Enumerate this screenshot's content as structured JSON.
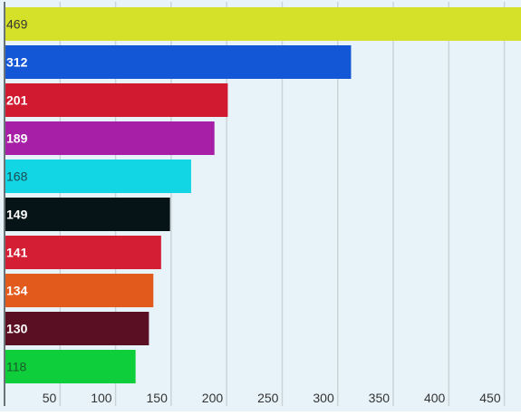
{
  "chart_data": {
    "type": "bar",
    "orientation": "horizontal",
    "values": [
      469,
      312,
      201,
      189,
      168,
      149,
      141,
      134,
      130,
      118
    ],
    "colors": [
      "#d5e128",
      "#1457d6",
      "#d11a2f",
      "#a61fa6",
      "#12d6e4",
      "#061418",
      "#d41e34",
      "#e25a1c",
      "#5a0f22",
      "#0fce3c"
    ],
    "label_colors": [
      "#333333",
      "#ffffff",
      "#ffffff",
      "#ffffff",
      "#1a4a52",
      "#ffffff",
      "#ffffff",
      "#ffffff",
      "#ffffff",
      "#1a5a2a"
    ],
    "x_ticks": [
      50,
      100,
      150,
      200,
      250,
      300,
      350,
      400,
      450
    ],
    "xlim": [
      0,
      465
    ],
    "grid": true,
    "title": "",
    "xlabel": "",
    "ylabel": ""
  }
}
